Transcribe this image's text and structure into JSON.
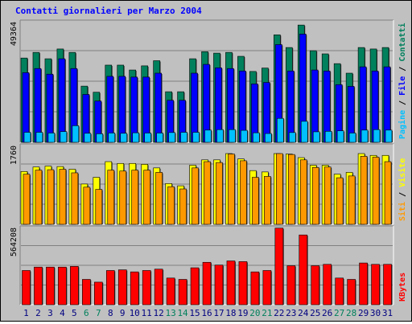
{
  "chart_data": {
    "type": "bar",
    "title": "Contatti giornalieri per Marzo 2004",
    "categories": [
      "1",
      "2",
      "3",
      "4",
      "5",
      "6",
      "7",
      "8",
      "9",
      "10",
      "11",
      "12",
      "13",
      "14",
      "15",
      "16",
      "17",
      "18",
      "19",
      "20",
      "21",
      "22",
      "23",
      "24",
      "25",
      "26",
      "27",
      "28",
      "29",
      "30",
      "31"
    ],
    "weekend_days": [
      "6",
      "7",
      "13",
      "14",
      "20",
      "21",
      "27",
      "28"
    ],
    "panels": [
      {
        "max_label": "49364",
        "ylim": [
          0,
          49364
        ],
        "side_labels": [
          "Pagine",
          "File",
          "Contatti"
        ],
        "series": [
          {
            "name": "Contatti",
            "color": "#00805c",
            "values": [
              34500,
              36800,
              34200,
              38200,
              36800,
              23000,
              20500,
              31600,
              31600,
              29600,
              31300,
              33400,
              20700,
              20700,
              34200,
              37100,
              36500,
              36800,
              35200,
              29000,
              30400,
              44000,
              38800,
              48000,
              37500,
              36200,
              32200,
              28300,
              38800,
              38200,
              38800
            ]
          },
          {
            "name": "File",
            "color": "#0000ff",
            "values": [
              28500,
              30200,
              27900,
              34200,
              30200,
              19600,
              16900,
              27000,
              27000,
              26700,
              26700,
              28300,
              17200,
              17200,
              28300,
              31900,
              30500,
              30200,
              29200,
              23900,
              24500,
              40000,
              29200,
              44300,
              29600,
              29200,
              23600,
              22900,
              30900,
              29200,
              30900
            ]
          },
          {
            "name": "Pagine",
            "color": "#00c0ff",
            "values": [
              4100,
              4100,
              3800,
              4400,
              6800,
              3700,
              3500,
              3800,
              3700,
              3900,
              3800,
              3800,
              4000,
              4100,
              4100,
              5000,
              5200,
              5200,
              4900,
              3900,
              3600,
              9800,
              4000,
              8600,
              4300,
              4500,
              4700,
              3800,
              5000,
              5200,
              5000
            ]
          }
        ]
      },
      {
        "max_label": "1760",
        "ylim": [
          0,
          1760
        ],
        "side_labels": [
          "Siti",
          "Visite"
        ],
        "series": [
          {
            "name": "Visite",
            "color": "#ffff00",
            "values": [
              1180,
              1280,
              1300,
              1290,
              1230,
              900,
              1050,
              1400,
              1360,
              1360,
              1340,
              1260,
              910,
              860,
              1320,
              1440,
              1440,
              1580,
              1460,
              1200,
              1170,
              1580,
              1570,
              1490,
              1320,
              1320,
              1120,
              1160,
              1580,
              1540,
              1540
            ]
          },
          {
            "name": "Siti",
            "color": "#ff9900",
            "values": [
              1120,
              1210,
              1220,
              1230,
              1150,
              830,
              780,
              1210,
              1190,
              1210,
              1210,
              1160,
              840,
              790,
              1260,
              1400,
              1380,
              1570,
              1420,
              1050,
              1070,
              1580,
              1560,
              1440,
              1270,
              1280,
              1040,
              1080,
              1520,
              1500,
              1400
            ]
          }
        ]
      },
      {
        "max_label": "564208",
        "ylim": [
          0,
          564208
        ],
        "side_labels": [
          "KBytes"
        ],
        "series": [
          {
            "name": "KBytes",
            "color": "#ff0000",
            "values": [
              250000,
              275000,
              275000,
              275000,
              280000,
              185000,
              165000,
              250000,
              255000,
              240000,
              250000,
              260000,
              195000,
              185000,
              270000,
              310000,
              290000,
              320000,
              315000,
              240000,
              250000,
              560000,
              285000,
              510000,
              285000,
              295000,
              195000,
              185000,
              305000,
              295000,
              295000
            ]
          }
        ]
      }
    ]
  },
  "colors": {
    "background": "#c0c0c0",
    "plot_background": "#c0c0c0",
    "gridline": "#808080",
    "title": "#0000ff",
    "weekday_label": "#000080",
    "weekend_label": "#00805c"
  }
}
